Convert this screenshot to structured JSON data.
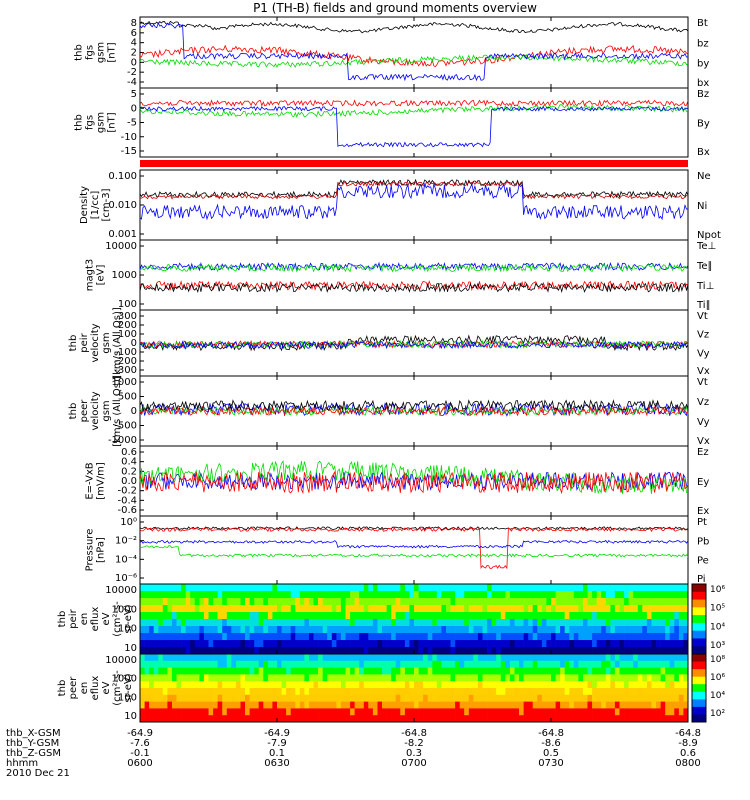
{
  "title": "P1 (TH-B) fields and ground moments overview",
  "colors": {
    "black": "#000000",
    "red": "#ff0000",
    "green": "#00dd00",
    "blue": "#0000ff",
    "darkred": "#cc0000"
  },
  "time_ticks": [
    "0600",
    "0630",
    "0700",
    "0730",
    "0800"
  ],
  "footer": {
    "rows": [
      {
        "label": "thb_X-GSM",
        "values": [
          "-64.9",
          "-64.9",
          "-64.8",
          "-64.8",
          "-64.8"
        ]
      },
      {
        "label": "thb_Y-GSM",
        "values": [
          "-7.6",
          "-7.9",
          "-8.2",
          "-8.6",
          "-8.9"
        ]
      },
      {
        "label": "thb_Z-GSM",
        "values": [
          "-0.1",
          "0.1",
          "0.3",
          "0.5",
          "0.6"
        ]
      },
      {
        "label": "hhmm",
        "values": [
          "0600",
          "0630",
          "0700",
          "0730",
          "0800"
        ]
      }
    ],
    "date": "2010 Dec 21"
  },
  "chart_data": [
    {
      "type": "line",
      "ylabel": [
        "thb",
        "fgs",
        "gsm",
        "[nT]"
      ],
      "yticks": [
        "8",
        "6",
        "4",
        "2",
        "0",
        "-2",
        "-4"
      ],
      "series": [
        {
          "name": "Bt",
          "color": "#000000"
        },
        {
          "name": "bz",
          "color": "#ff0000"
        },
        {
          "name": "by",
          "color": "#00dd00"
        },
        {
          "name": "bx",
          "color": "#0000ff"
        }
      ]
    },
    {
      "type": "line",
      "ylabel": [
        "thb",
        "fgs",
        "gsm",
        "[nT]"
      ],
      "yticks": [
        "5",
        "0",
        "-5",
        "-10",
        "-15"
      ],
      "series": [
        {
          "name": "Bz",
          "color": "#ff0000"
        },
        {
          "name": "By",
          "color": "#00dd00"
        },
        {
          "name": "Bx",
          "color": "#0000ff"
        }
      ]
    },
    {
      "type": "line",
      "ylabel": [
        "Density",
        "[1/cc]",
        "[cm-3]"
      ],
      "yticks": [
        "0.100",
        "0.010",
        "0.001"
      ],
      "series": [
        {
          "name": "Ne",
          "color": "#cc0000"
        },
        {
          "name": "Ni",
          "color": "#000000"
        },
        {
          "name": "Npot",
          "color": "#0000ff"
        }
      ]
    },
    {
      "type": "line",
      "ylabel": [
        "magt3",
        "[eV]"
      ],
      "yticks": [
        "10000",
        "1000",
        "100"
      ],
      "series": [
        {
          "name": "Te⊥",
          "color": "#ff0000"
        },
        {
          "name": "Te∥",
          "color": "#000000"
        },
        {
          "name": "Ti⊥",
          "color": "#0000ff"
        },
        {
          "name": "Ti∥",
          "color": "#00dd00"
        }
      ]
    },
    {
      "type": "line",
      "ylabel": [
        "thb",
        "peir",
        "velocity",
        "gsm",
        "[km/s (All Qs)]"
      ],
      "yticks": [
        "300",
        "200",
        "100",
        "0",
        "-100",
        "-200",
        "-300"
      ],
      "series": [
        {
          "name": "Vt",
          "color": "#000000"
        },
        {
          "name": "Vz",
          "color": "#ff0000"
        },
        {
          "name": "Vy",
          "color": "#00dd00"
        },
        {
          "name": "Vx",
          "color": "#0000ff"
        }
      ]
    },
    {
      "type": "line",
      "ylabel": [
        "thb",
        "peer",
        "velocity",
        "gsm",
        "[km/s (All Qs)]"
      ],
      "yticks": [
        "1000",
        "500",
        "0",
        "-500",
        "-1000"
      ],
      "series": [
        {
          "name": "Vt",
          "color": "#000000"
        },
        {
          "name": "Vz",
          "color": "#ff0000"
        },
        {
          "name": "Vy",
          "color": "#00dd00"
        },
        {
          "name": "Vx",
          "color": "#0000ff"
        }
      ]
    },
    {
      "type": "line",
      "ylabel": [
        "E=-VxB",
        "[mV/m]"
      ],
      "yticks": [
        "0.6",
        "0.4",
        "0.2",
        "0.0",
        "-0.2",
        "-0.4",
        "-0.6"
      ],
      "series": [
        {
          "name": "Ez",
          "color": "#ff0000"
        },
        {
          "name": "Ey",
          "color": "#00dd00"
        },
        {
          "name": "Ex",
          "color": "#0000ff"
        }
      ]
    },
    {
      "type": "line",
      "ylabel": [
        "Pressure",
        "[nPa]"
      ],
      "yticks": [
        "10⁰",
        "10⁻²",
        "10⁻⁴",
        "10⁻⁶"
      ],
      "series": [
        {
          "name": "Pt",
          "color": "#000000"
        },
        {
          "name": "Pb",
          "color": "#ff0000"
        },
        {
          "name": "Pe",
          "color": "#00dd00"
        },
        {
          "name": "Pi",
          "color": "#0000ff"
        }
      ]
    },
    {
      "type": "heatmap",
      "ylabel": [
        "thb",
        "peir",
        "en",
        "eflux",
        "eV",
        "(cm²-s-",
        "sr-eV)"
      ],
      "yticks": [
        "10000",
        "1000",
        "100",
        "10"
      ],
      "colorbar": [
        "10⁶",
        "10⁵",
        "10⁴",
        "10³"
      ]
    },
    {
      "type": "heatmap",
      "ylabel": [
        "thb",
        "peer",
        "en",
        "eflux",
        "eV",
        "(cm²-s-",
        "sr-eV)"
      ],
      "yticks": [
        "10000",
        "1000",
        "100",
        "10"
      ],
      "colorbar": [
        "10⁸",
        "10⁶",
        "10⁴",
        "10²"
      ]
    }
  ]
}
